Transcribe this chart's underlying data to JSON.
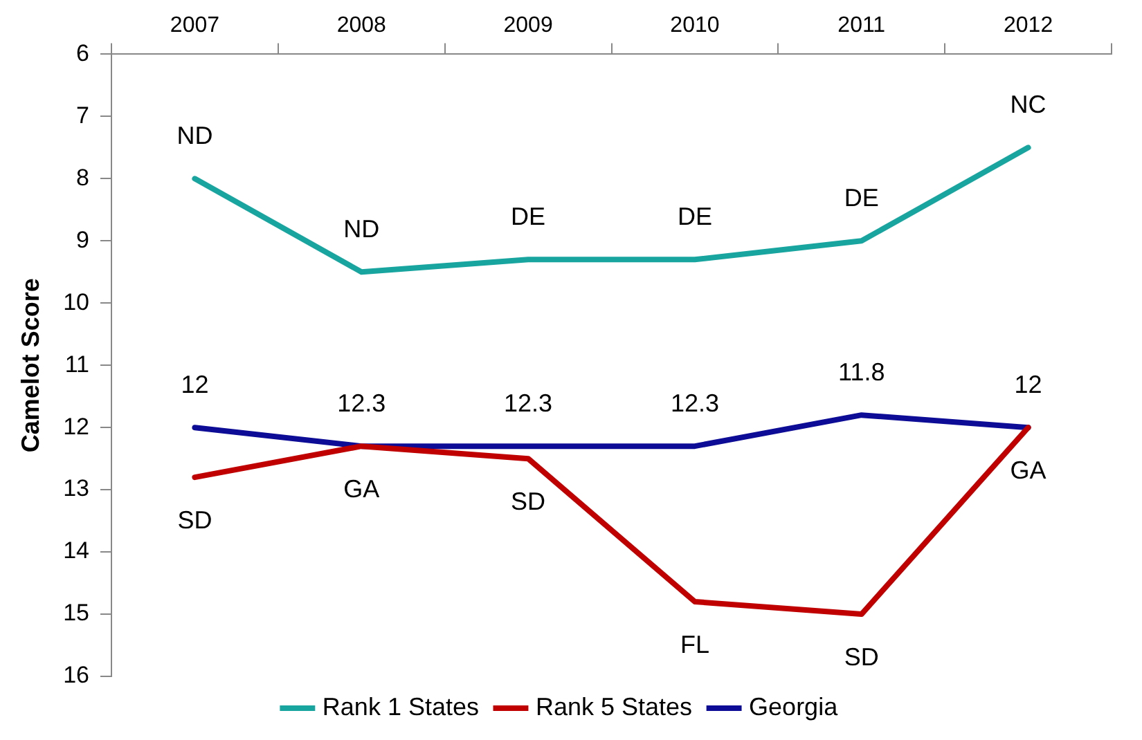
{
  "chart_data": {
    "type": "line",
    "ylabel": "Camelot Score",
    "categories": [
      "2007",
      "2008",
      "2009",
      "2010",
      "2011",
      "2012"
    ],
    "series": [
      {
        "name": "Rank 1 States",
        "color": "#18a5a0",
        "values": [
          8.0,
          9.5,
          9.3,
          9.3,
          9.0,
          7.5
        ]
      },
      {
        "name": "Rank 5 States",
        "color": "#c00000",
        "values": [
          12.8,
          12.3,
          12.5,
          14.8,
          15.0,
          12.0
        ]
      },
      {
        "name": "Georgia",
        "color": "#0c0c96",
        "values": [
          12,
          12.3,
          12.3,
          12.3,
          11.8,
          12
        ],
        "value_labels": [
          "12",
          "12.3",
          "12.3",
          "12.3",
          "11.8",
          "12"
        ]
      }
    ],
    "ylim": [
      16,
      6
    ],
    "yticks": [
      6,
      7,
      8,
      9,
      10,
      11,
      12,
      13,
      14,
      15,
      16
    ],
    "grid": false,
    "legend": "bottom",
    "marker": "none",
    "line_style": "solid",
    "annotations": [
      {
        "text": "ND",
        "x": "2007",
        "y": 8.0
      },
      {
        "text": "ND",
        "x": "2008",
        "y": 9.5
      },
      {
        "text": "DE",
        "x": "2009",
        "y": 9.3
      },
      {
        "text": "DE",
        "x": "2010",
        "y": 9.3
      },
      {
        "text": "DE",
        "x": "2011",
        "y": 9.0
      },
      {
        "text": "NC",
        "x": "2012",
        "y": 7.5
      },
      {
        "text": "SD",
        "x": "2007",
        "y": 12.8
      },
      {
        "text": "GA",
        "x": "2008",
        "y": 12.3
      },
      {
        "text": "SD",
        "x": "2009",
        "y": 12.5
      },
      {
        "text": "FL",
        "x": "2010",
        "y": 14.8
      },
      {
        "text": "SD",
        "x": "2011",
        "y": 15.0
      },
      {
        "text": "GA",
        "x": "2012",
        "y": 12.0
      }
    ]
  }
}
